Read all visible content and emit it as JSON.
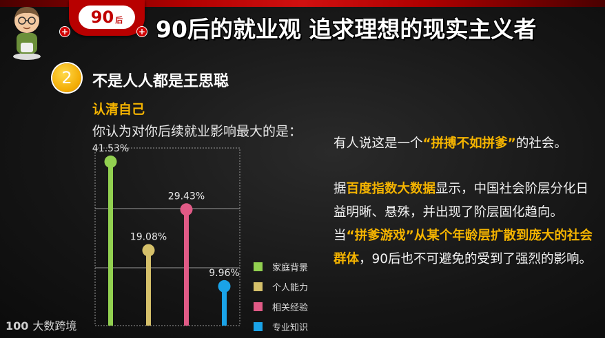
{
  "header": {
    "badge_number": "90",
    "badge_suffix": "后",
    "title": "90后的就业观 追求理想的现实主义者"
  },
  "section": {
    "number": "2",
    "heading": "不是人人都是王思聪",
    "subheading": "认清自己",
    "question": "你认为对你后续就业影响最大的是："
  },
  "chart_data": {
    "type": "lollipop",
    "categories": [
      "家庭背景",
      "个人能力",
      "相关经验",
      "专业知识"
    ],
    "values": [
      41.53,
      19.08,
      29.43,
      9.96
    ],
    "value_labels": [
      "41.53%",
      "19.08%",
      "29.43%",
      "9.96%"
    ],
    "colors": [
      "#92d050",
      "#d5c06a",
      "#e05a86",
      "#1aa3e8"
    ],
    "ylim": [
      0,
      45
    ],
    "grid": true,
    "legend": "right"
  },
  "right_text": {
    "p1_before": "有人说这是一个",
    "p1_highlight": "“拼搏不如拼爹”",
    "p1_after": "的社会。",
    "p2_before": "据",
    "p2_highlight1": "百度指数大数据",
    "p2_middle": "显示，中国社会阶层分化日益明晰、悬殊，并出现了阶层固化趋向。当",
    "p2_highlight2": "“拼爹游戏”从某个年龄层扩散到庞大的社会群体",
    "p2_after": "，90后也不可避免的受到了强烈的影响。"
  },
  "footer": {
    "logo_mark": "100",
    "logo_text": "大数跨境"
  }
}
